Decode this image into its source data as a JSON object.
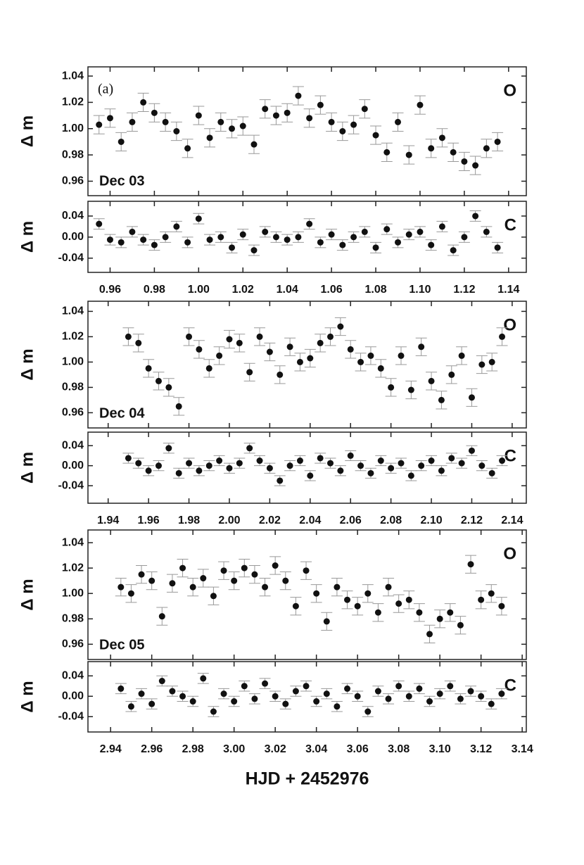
{
  "chart_data": [
    {
      "type": "scatter",
      "ylabel": "Δ m",
      "panel": "(a)",
      "label": "O",
      "date": "Dec 03",
      "color": "#111111",
      "error": 0.007,
      "xlim": [
        0.95,
        1.148
      ],
      "ylim": [
        0.949,
        1.047
      ],
      "yticks": [
        0.96,
        0.98,
        {
          "value": 1,
          "label": "1.00"
        },
        1.02,
        1.04
      ],
      "x": [
        0.955,
        0.96,
        0.965,
        0.97,
        0.975,
        0.98,
        0.985,
        0.99,
        0.995,
        1.0,
        1.005,
        1.01,
        1.015,
        1.02,
        1.025,
        1.03,
        1.035,
        1.04,
        1.045,
        1.05,
        1.055,
        1.06,
        1.065,
        1.07,
        1.075,
        1.08,
        1.085,
        1.09,
        1.095,
        1.1,
        1.105,
        1.11,
        1.115,
        1.12,
        1.125,
        1.13,
        1.135
      ],
      "values": [
        1.003,
        1.008,
        0.99,
        1.005,
        1.02,
        1.012,
        1.005,
        0.998,
        0.985,
        1.01,
        0.993,
        1.005,
        1.0,
        1.002,
        0.988,
        1.015,
        1.01,
        1.012,
        1.025,
        1.008,
        1.018,
        1.005,
        0.998,
        1.003,
        1.015,
        0.995,
        0.982,
        1.005,
        0.98,
        1.018,
        0.985,
        0.993,
        0.982,
        0.975,
        0.972,
        0.985,
        0.99
      ]
    },
    {
      "type": "scatter",
      "ylabel": "Δ m",
      "label": "C",
      "color": "#111111",
      "error": 0.01,
      "xlim": [
        0.95,
        1.148
      ],
      "ylim": [
        -0.067,
        0.068
      ],
      "yticks": [
        -0.04,
        {
          "value": 0,
          "label": "0.00"
        },
        0.04
      ],
      "xticks": [
        0.96,
        0.98,
        {
          "value": 1,
          "label": "1.00"
        },
        1.02,
        1.04,
        1.06,
        1.08,
        {
          "value": 1.1,
          "label": "1.10"
        },
        1.12,
        1.14
      ],
      "x": [
        0.955,
        0.96,
        0.965,
        0.97,
        0.975,
        0.98,
        0.985,
        0.99,
        0.995,
        1.0,
        1.005,
        1.01,
        1.015,
        1.02,
        1.025,
        1.03,
        1.035,
        1.04,
        1.045,
        1.05,
        1.055,
        1.06,
        1.065,
        1.07,
        1.075,
        1.08,
        1.085,
        1.09,
        1.095,
        1.1,
        1.105,
        1.11,
        1.115,
        1.12,
        1.125,
        1.13,
        1.135
      ],
      "values": [
        0.025,
        -0.005,
        -0.01,
        0.01,
        -0.005,
        -0.015,
        0.0,
        0.02,
        -0.01,
        0.035,
        -0.005,
        0.0,
        -0.02,
        0.005,
        -0.025,
        0.01,
        0.0,
        -0.005,
        0.0,
        0.025,
        -0.01,
        0.005,
        -0.015,
        0.0,
        0.01,
        -0.02,
        0.015,
        -0.01,
        0.005,
        0.01,
        -0.015,
        0.02,
        -0.025,
        0.0,
        0.04,
        0.01,
        -0.02
      ]
    },
    {
      "type": "scatter",
      "ylabel": "Δ m",
      "label": "O",
      "date": "Dec 04",
      "color": "#111111",
      "error": 0.007,
      "xlim": [
        1.93,
        2.147
      ],
      "ylim": [
        0.948,
        1.048
      ],
      "yticks": [
        0.96,
        0.98,
        {
          "value": 1,
          "label": "1.00"
        },
        1.02,
        1.04
      ],
      "x": [
        1.95,
        1.955,
        1.96,
        1.965,
        1.97,
        1.975,
        1.98,
        1.985,
        1.99,
        1.995,
        2.0,
        2.005,
        2.01,
        2.015,
        2.02,
        2.025,
        2.03,
        2.035,
        2.04,
        2.045,
        2.05,
        2.055,
        2.06,
        2.065,
        2.07,
        2.075,
        2.08,
        2.085,
        2.09,
        2.095,
        2.1,
        2.105,
        2.11,
        2.115,
        2.12,
        2.125,
        2.13,
        2.135
      ],
      "values": [
        1.02,
        1.015,
        0.995,
        0.985,
        0.98,
        0.965,
        1.02,
        1.01,
        0.995,
        1.005,
        1.018,
        1.015,
        0.992,
        1.02,
        1.008,
        0.99,
        1.012,
        1.0,
        1.003,
        1.015,
        1.02,
        1.028,
        1.01,
        1.0,
        1.005,
        0.995,
        0.98,
        1.005,
        0.978,
        1.012,
        0.985,
        0.97,
        0.99,
        1.005,
        0.972,
        0.998,
        1.0,
        1.02
      ]
    },
    {
      "type": "scatter",
      "ylabel": "Δ m",
      "label": "C",
      "color": "#111111",
      "error": 0.01,
      "xlim": [
        1.93,
        2.147
      ],
      "ylim": [
        -0.075,
        0.067
      ],
      "yticks": [
        -0.04,
        {
          "value": 0,
          "label": "0.00"
        },
        0.04
      ],
      "xticks": [
        1.94,
        1.96,
        1.98,
        {
          "value": 2,
          "label": "2.00"
        },
        2.02,
        2.04,
        2.06,
        2.08,
        {
          "value": 2.1,
          "label": "2.10"
        },
        2.12,
        2.14
      ],
      "x": [
        1.95,
        1.955,
        1.96,
        1.965,
        1.97,
        1.975,
        1.98,
        1.985,
        1.99,
        1.995,
        2.0,
        2.005,
        2.01,
        2.015,
        2.02,
        2.025,
        2.03,
        2.035,
        2.04,
        2.045,
        2.05,
        2.055,
        2.06,
        2.065,
        2.07,
        2.075,
        2.08,
        2.085,
        2.09,
        2.095,
        2.1,
        2.105,
        2.11,
        2.115,
        2.12,
        2.125,
        2.13,
        2.135
      ],
      "values": [
        0.015,
        0.005,
        -0.01,
        0.0,
        0.035,
        -0.015,
        0.005,
        -0.01,
        0.0,
        0.01,
        -0.005,
        0.005,
        0.035,
        0.01,
        -0.005,
        -0.03,
        0.0,
        0.01,
        -0.02,
        0.015,
        0.005,
        -0.01,
        0.02,
        0.0,
        -0.015,
        0.01,
        -0.005,
        0.005,
        -0.02,
        0.0,
        0.01,
        -0.01,
        0.015,
        0.005,
        0.03,
        0.0,
        -0.015,
        0.01
      ]
    },
    {
      "type": "scatter",
      "ylabel": "Δ m",
      "label": "O",
      "date": "Dec 05",
      "color": "#111111",
      "error": 0.007,
      "xlim": [
        2.929,
        3.142
      ],
      "ylim": [
        0.948,
        1.05
      ],
      "yticks": [
        0.96,
        0.98,
        {
          "value": 1,
          "label": "1.00"
        },
        1.02,
        1.04
      ],
      "x": [
        2.945,
        2.95,
        2.955,
        2.96,
        2.965,
        2.97,
        2.975,
        2.98,
        2.985,
        2.99,
        2.995,
        3.0,
        3.005,
        3.01,
        3.015,
        3.02,
        3.025,
        3.03,
        3.035,
        3.04,
        3.045,
        3.05,
        3.055,
        3.06,
        3.065,
        3.07,
        3.075,
        3.08,
        3.085,
        3.09,
        3.095,
        3.1,
        3.105,
        3.11,
        3.115,
        3.12,
        3.125,
        3.13
      ],
      "values": [
        1.005,
        1.0,
        1.015,
        1.01,
        0.982,
        1.008,
        1.02,
        1.005,
        1.012,
        0.998,
        1.018,
        1.01,
        1.02,
        1.015,
        1.005,
        1.022,
        1.01,
        0.99,
        1.018,
        1.0,
        0.978,
        1.005,
        0.995,
        0.99,
        1.0,
        0.985,
        1.005,
        0.992,
        0.995,
        0.985,
        0.968,
        0.98,
        0.985,
        0.975,
        1.023,
        0.995,
        1.0,
        0.99
      ]
    },
    {
      "type": "scatter",
      "ylabel": "Δ m",
      "label": "C",
      "color": "#111111",
      "error": 0.01,
      "xlabel": "HJD + 2452976",
      "xlim": [
        2.929,
        3.142
      ],
      "ylim": [
        -0.07,
        0.068
      ],
      "yticks": [
        -0.04,
        {
          "value": 0,
          "label": "0.00"
        },
        0.04
      ],
      "xticks": [
        2.94,
        2.96,
        2.98,
        {
          "value": 3,
          "label": "3.00"
        },
        3.02,
        3.04,
        3.06,
        3.08,
        {
          "value": 3.1,
          "label": "3.10"
        },
        3.12,
        3.14
      ],
      "x": [
        2.945,
        2.95,
        2.955,
        2.96,
        2.965,
        2.97,
        2.975,
        2.98,
        2.985,
        2.99,
        2.995,
        3.0,
        3.005,
        3.01,
        3.015,
        3.02,
        3.025,
        3.03,
        3.035,
        3.04,
        3.045,
        3.05,
        3.055,
        3.06,
        3.065,
        3.07,
        3.075,
        3.08,
        3.085,
        3.09,
        3.095,
        3.1,
        3.105,
        3.11,
        3.115,
        3.12,
        3.125,
        3.13
      ],
      "values": [
        0.015,
        -0.02,
        0.005,
        -0.015,
        0.03,
        0.01,
        0.0,
        -0.01,
        0.035,
        -0.03,
        0.005,
        -0.01,
        0.02,
        -0.005,
        0.025,
        0.0,
        -0.015,
        0.01,
        0.02,
        -0.01,
        0.005,
        -0.02,
        0.015,
        0.0,
        -0.03,
        0.01,
        -0.005,
        0.02,
        0.0,
        0.015,
        -0.01,
        0.005,
        0.02,
        -0.005,
        0.01,
        0.0,
        -0.015,
        0.005
      ]
    }
  ]
}
